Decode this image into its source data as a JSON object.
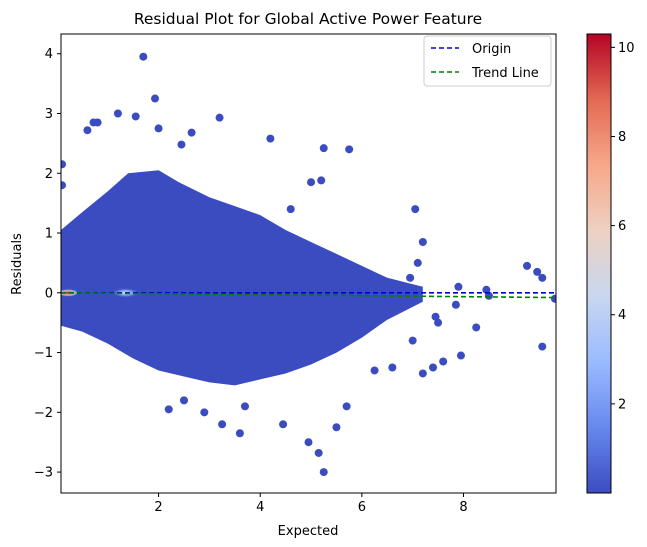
{
  "chart_data": {
    "type": "scatter",
    "title": "Residual Plot for Global Active Power Feature",
    "xlabel": "Expected",
    "ylabel": "Residuals",
    "xlim": [
      0.08,
      9.82
    ],
    "ylim": [
      -3.35,
      4.33
    ],
    "xticks": [
      2,
      4,
      6,
      8
    ],
    "yticks": [
      -3,
      -2,
      -1,
      0,
      1,
      2,
      3,
      4
    ],
    "grid": false,
    "legend_position": "top-right",
    "series": [
      {
        "name": "Origin",
        "kind": "line",
        "style": "dashed",
        "color": "#0000cc",
        "x": [
          0.08,
          9.82
        ],
        "y": [
          0.0,
          0.0
        ]
      },
      {
        "name": "Trend Line",
        "kind": "line",
        "style": "dashed",
        "color": "#008000",
        "x": [
          0.08,
          9.82
        ],
        "y": [
          0.0,
          -0.08
        ]
      }
    ],
    "outlier_points": {
      "x": [
        1.7,
        1.93,
        1.2,
        1.55,
        2.0,
        0.72,
        0.6,
        0.8,
        2.65,
        3.2,
        2.45,
        4.2,
        5.25,
        5.75,
        5.0,
        5.2,
        4.6,
        7.05,
        7.2,
        9.25,
        9.45,
        9.55,
        9.8,
        9.55,
        7.95,
        8.25,
        7.85,
        8.5,
        8.45,
        7.5,
        7.6,
        7.4,
        7.2,
        6.6,
        6.25,
        7.0,
        7.45,
        7.9,
        6.95,
        7.1,
        4.95,
        5.15,
        5.25,
        3.6,
        3.25,
        2.9,
        2.2,
        0.1,
        0.1,
        5.5,
        5.7,
        4.45,
        3.7,
        2.5
      ],
      "y": [
        3.95,
        3.25,
        3.0,
        2.95,
        2.75,
        2.85,
        2.72,
        2.85,
        2.68,
        2.93,
        2.48,
        2.58,
        2.42,
        2.4,
        1.85,
        1.88,
        1.4,
        1.4,
        0.85,
        0.45,
        0.35,
        0.25,
        -0.1,
        -0.9,
        -1.05,
        -0.58,
        -0.2,
        -0.05,
        0.05,
        -0.5,
        -1.15,
        -1.25,
        -1.35,
        -1.25,
        -1.3,
        -0.8,
        -0.4,
        0.1,
        0.25,
        0.5,
        -2.5,
        -2.68,
        -3.0,
        -2.35,
        -2.2,
        -2.0,
        -1.95,
        2.15,
        1.8,
        -2.25,
        -1.9,
        -2.2,
        -1.9,
        -1.8
      ],
      "color": "#3b4cc0"
    },
    "colorbar": {
      "label": "",
      "min": 0.0,
      "max": 10.3,
      "ticks": [
        2,
        4,
        6,
        8,
        10
      ],
      "colormap": "coolwarm",
      "colors": [
        "#3b4cc0",
        "#6788ee",
        "#9abbff",
        "#c9d7f0",
        "#edd1c2",
        "#f7a889",
        "#e26952",
        "#b40426"
      ]
    }
  }
}
